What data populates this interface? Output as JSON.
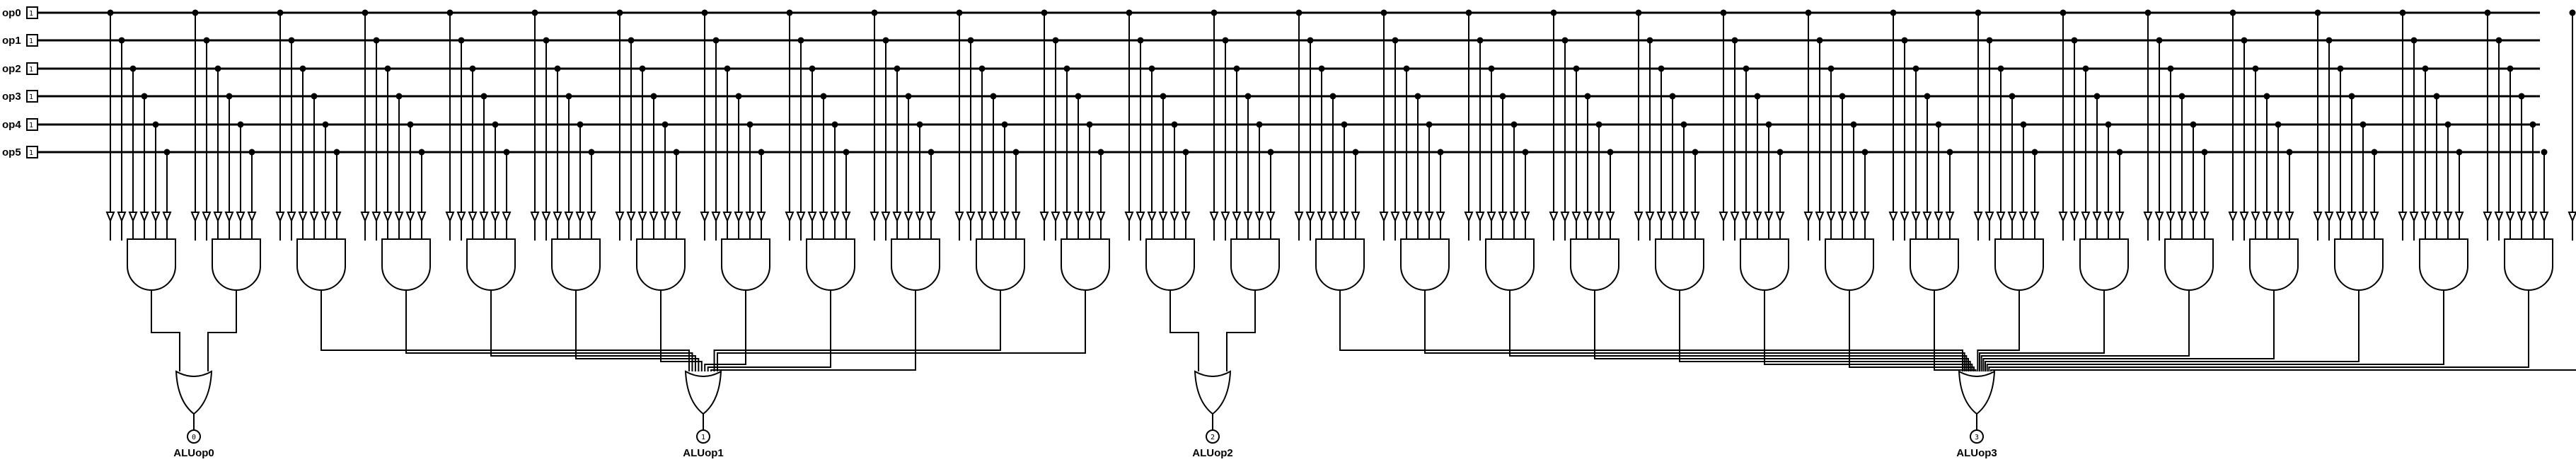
{
  "inputs": [
    {
      "name": "op0",
      "pin": "0",
      "width": "1"
    },
    {
      "name": "op1",
      "pin": "1",
      "width": "1"
    },
    {
      "name": "op2",
      "pin": "2",
      "width": "1"
    },
    {
      "name": "op3",
      "pin": "3",
      "width": "1"
    },
    {
      "name": "op4",
      "pin": "4",
      "width": "1"
    },
    {
      "name": "op5",
      "pin": "5",
      "width": "1"
    }
  ],
  "outputs": [
    {
      "name": "ALUop0",
      "pin": "0",
      "and_gates": 2
    },
    {
      "name": "ALUop1",
      "pin": "1",
      "and_gates": 10
    },
    {
      "name": "ALUop2",
      "pin": "2",
      "and_gates": 2
    },
    {
      "name": "ALUop3",
      "pin": "3",
      "and_gates": 16
    }
  ],
  "gates": {
    "and_count": 30,
    "or_count": 4,
    "and_inputs": 6
  }
}
